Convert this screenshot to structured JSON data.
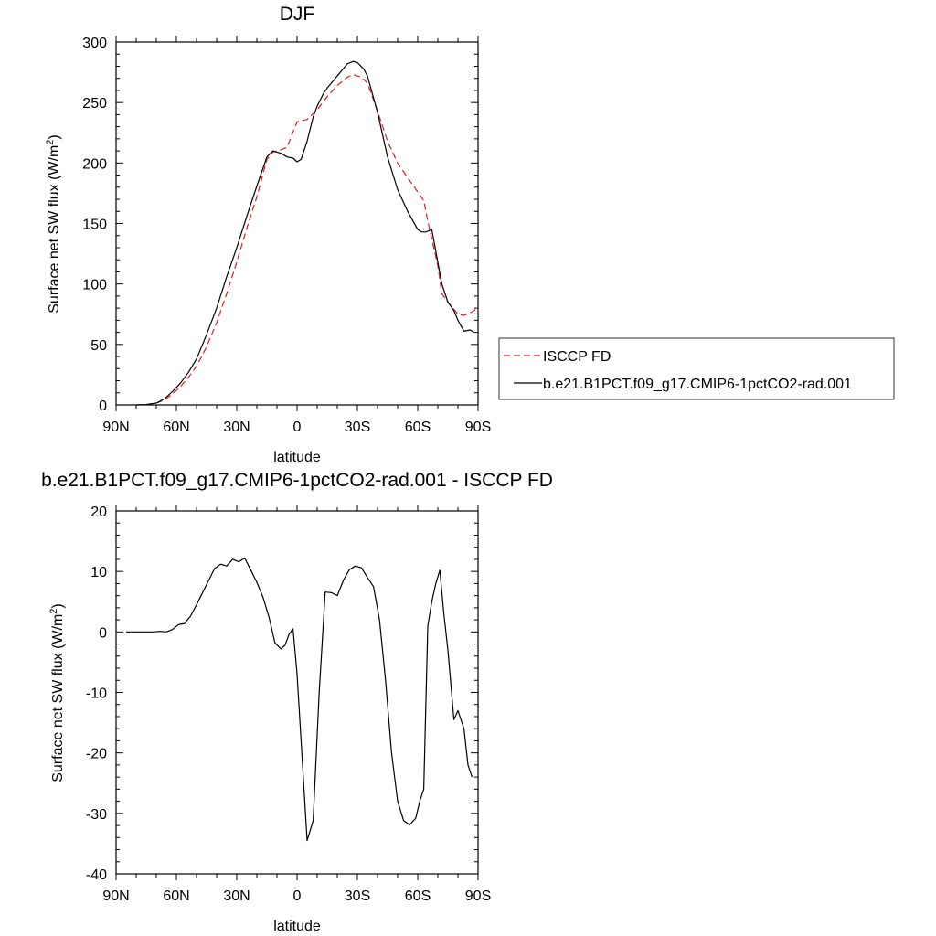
{
  "chart_data": [
    {
      "type": "line",
      "title": "DJF",
      "xlabel": "latitude",
      "ylabel": "Surface net SW flux (W/m",
      "ylabel_sup": "2",
      "ylabel_end": ")",
      "x_ticks": [
        90,
        60,
        30,
        0,
        -30,
        -60,
        -90
      ],
      "x_tick_labels": [
        "90N",
        "60N",
        "30N",
        "0",
        "30S",
        "60S",
        "90S"
      ],
      "xlim": [
        90,
        -90
      ],
      "ylim": [
        0,
        300
      ],
      "y_ticks": [
        0,
        50,
        100,
        150,
        200,
        250,
        300
      ],
      "y_tick_labels": [
        "0",
        "50",
        "100",
        "150",
        "200",
        "250",
        "300"
      ],
      "grid": false,
      "legend_position": "right",
      "series": [
        {
          "name": "ISCCP FD",
          "color": "#e41a1c",
          "dash": "dashed",
          "x": [
            80,
            75,
            70,
            66,
            62,
            58,
            54,
            50,
            45,
            40,
            35,
            30,
            25,
            20,
            15,
            12,
            8,
            5,
            0,
            -5,
            -10,
            -15,
            -20,
            -25,
            -28,
            -32,
            -35,
            -40,
            -45,
            -50,
            -55,
            -60,
            -63,
            -65,
            -70,
            -72,
            -75,
            -80,
            -83,
            -86,
            -90
          ],
          "y": [
            0,
            0.3,
            1.5,
            4,
            9,
            15,
            23,
            32,
            48,
            68,
            92,
            118,
            146,
            172,
            203,
            209,
            211,
            213,
            234,
            236,
            244,
            255,
            264,
            271,
            273,
            271,
            266,
            243,
            218,
            200,
            188,
            176,
            169,
            152,
            115,
            92,
            85,
            75,
            74,
            76,
            80
          ]
        },
        {
          "name": "b.e21.B1PCT.f09_g17.CMIP6-1pctCO2-rad.001",
          "color": "#000000",
          "dash": "solid",
          "x": [
            80,
            75,
            70,
            66,
            62,
            58,
            54,
            50,
            45,
            40,
            35,
            30,
            25,
            20,
            15,
            12,
            8,
            5,
            2,
            0,
            -2,
            -5,
            -8,
            -10,
            -13,
            -15,
            -20,
            -25,
            -28,
            -30,
            -33,
            -35,
            -40,
            -45,
            -50,
            -55,
            -60,
            -62,
            -64,
            -67,
            -70,
            -72,
            -75,
            -78,
            -80,
            -83,
            -86,
            -88
          ],
          "y": [
            0,
            0.3,
            1.5,
            5,
            11,
            18,
            27,
            38,
            58,
            80,
            106,
            130,
            156,
            181,
            205,
            210,
            208,
            205,
            204,
            201,
            203,
            218,
            238,
            247,
            257,
            262,
            272,
            282,
            284,
            283,
            278,
            272,
            242,
            205,
            178,
            160,
            145,
            143,
            143,
            145,
            118,
            100,
            85,
            78,
            70,
            61,
            62,
            60
          ]
        }
      ]
    },
    {
      "type": "line",
      "title": "b.e21.B1PCT.f09_g17.CMIP6-1pctCO2-rad.001 - ISCCP FD",
      "xlabel": "latitude",
      "ylabel": "Surface net SW flux (W/m",
      "ylabel_sup": "2",
      "ylabel_end": ")",
      "x_ticks": [
        90,
        60,
        30,
        0,
        -30,
        -60,
        -90
      ],
      "x_tick_labels": [
        "90N",
        "60N",
        "30N",
        "0",
        "30S",
        "60S",
        "90S"
      ],
      "xlim": [
        90,
        -90
      ],
      "ylim": [
        -40,
        20
      ],
      "y_ticks": [
        -40,
        -30,
        -20,
        -10,
        0,
        10,
        20
      ],
      "y_tick_labels": [
        "-40",
        "-30",
        "-20",
        "-10",
        "0",
        "10",
        "20"
      ],
      "grid": false,
      "series": [
        {
          "name": "",
          "color": "#000000",
          "dash": "solid",
          "x": [
            85,
            78,
            72,
            68,
            65,
            62,
            59,
            56,
            53,
            50,
            47,
            44,
            41,
            38,
            35,
            32,
            29,
            26,
            23,
            20,
            17,
            14,
            11,
            8,
            6,
            4,
            2,
            0,
            -2,
            -5,
            -8,
            -11,
            -14,
            -17,
            -20,
            -23,
            -26,
            -29,
            -32,
            -35,
            -38,
            -41,
            -44,
            -47,
            -50,
            -53,
            -56,
            -59,
            -61,
            -63,
            -65,
            -67,
            -69,
            -71,
            -73,
            -75,
            -78,
            -80,
            -83,
            -85,
            -87
          ],
          "y": [
            0,
            0,
            0,
            0.1,
            0,
            0.4,
            1.2,
            1.4,
            2.6,
            4.5,
            6.5,
            8.5,
            10.5,
            11.2,
            10.9,
            12.0,
            11.6,
            12.2,
            10.2,
            8.2,
            5.8,
            2.5,
            -1.8,
            -2.8,
            -2.2,
            -0.4,
            0.5,
            -7,
            -18,
            -34.5,
            -31.2,
            -10,
            6.6,
            6.5,
            6.0,
            8.5,
            10.3,
            10.9,
            10.6,
            9.0,
            7.5,
            2.0,
            -8.0,
            -20,
            -28,
            -31.2,
            -31.9,
            -30.8,
            -28,
            -26,
            1,
            5,
            8,
            10.2,
            3.0,
            -3.0,
            -14.5,
            -13.0,
            -16.0,
            -22,
            -24
          ]
        }
      ]
    }
  ]
}
